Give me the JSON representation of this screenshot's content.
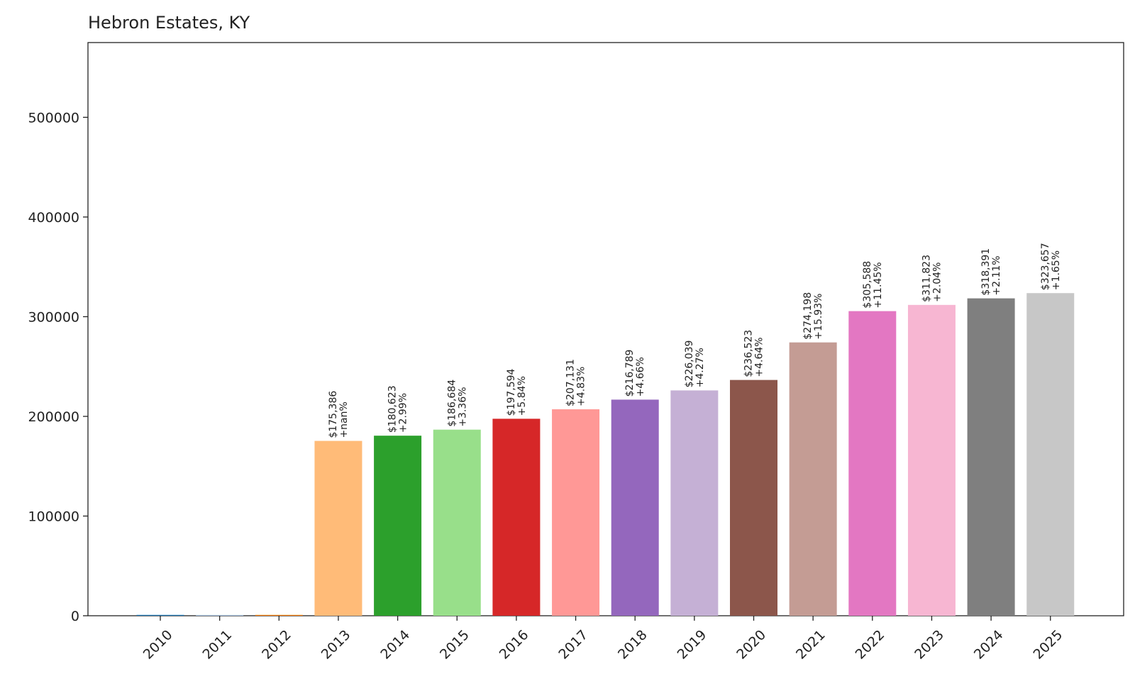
{
  "chart_data": {
    "type": "bar",
    "title": "Hebron Estates, KY",
    "xlabel": "",
    "ylabel": "",
    "ylim": [
      0,
      575000
    ],
    "yticks": [
      0,
      100000,
      200000,
      300000,
      400000,
      500000
    ],
    "grid": false,
    "categories": [
      "2010",
      "2011",
      "2012",
      "2013",
      "2014",
      "2015",
      "2016",
      "2017",
      "2018",
      "2019",
      "2020",
      "2021",
      "2022",
      "2023",
      "2024",
      "2025"
    ],
    "values": [
      0,
      0,
      0,
      175386,
      180623,
      186684,
      197594,
      207131,
      216789,
      226039,
      236523,
      274198,
      305588,
      311823,
      318391,
      323657
    ],
    "labels": [
      "",
      "",
      "",
      "$175,386\n+nan%",
      "$180,623\n+2.99%",
      "$186,684\n+3.36%",
      "$197,594\n+5.84%",
      "$207,131\n+4.83%",
      "$216,789\n+4.66%",
      "$226,039\n+4.27%",
      "$236,523\n+4.64%",
      "$274,198\n+15.93%",
      "$305,588\n+11.45%",
      "$311,823\n+2.04%",
      "$318,391\n+2.11%",
      "$323,657\n+1.65%"
    ],
    "colors": [
      "#1f77b4",
      "#aec7e8",
      "#ff7f0e",
      "#ffbb78",
      "#2ca02c",
      "#98df8a",
      "#d62728",
      "#ff9896",
      "#9467bd",
      "#c5b0d5",
      "#8c564b",
      "#c49c94",
      "#e377c2",
      "#f7b6d2",
      "#7f7f7f",
      "#c7c7c7"
    ]
  }
}
